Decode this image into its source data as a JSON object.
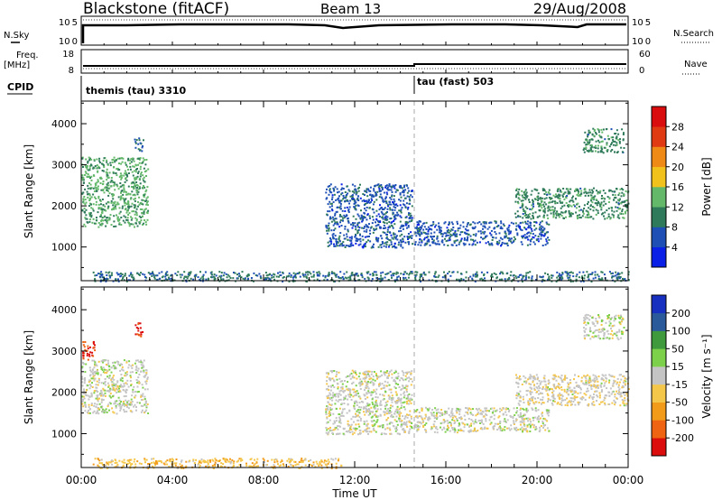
{
  "header": {
    "station": "Blackstone (fitACF)",
    "beam": "Beam 13",
    "date": "29/Aug/2008"
  },
  "time_axis": {
    "label": "Time UT",
    "range_hours": [
      0,
      24
    ],
    "ticks": [
      {
        "value": 0,
        "label": "00:00"
      },
      {
        "value": 4,
        "label": "04:00"
      },
      {
        "value": 8,
        "label": "08:00"
      },
      {
        "value": 12,
        "label": "12:00"
      },
      {
        "value": 16,
        "label": "16:00"
      },
      {
        "value": 20,
        "label": "20:00"
      },
      {
        "value": 24,
        "label": "00:00"
      }
    ]
  },
  "strip_labels": {
    "nsky": "N.Sky",
    "nsky_hi": "10^5",
    "nsky_lo": "10^0",
    "nsearch": "N.Search",
    "nsearch_hi": "10^5",
    "nsearch_lo": "10^0",
    "freq": "Freq.",
    "freq_unit": "[MHz]",
    "freq_hi": "18",
    "freq_lo": "8",
    "nave": "Nave",
    "nave_hi": "60",
    "nave_lo": "0",
    "cpid": "CPID"
  },
  "cpid_segments": [
    {
      "start_hour": 0,
      "label": "themis (tau) 3310"
    },
    {
      "start_hour": 14.55,
      "label": "tau (fast) 503"
    }
  ],
  "chart_data": [
    {
      "type": "heatmap",
      "name": "power",
      "ylabel": "Slant Range [km]",
      "ylim": [
        180,
        4550
      ],
      "yticks": [
        1000,
        2000,
        3000,
        4000
      ],
      "colorbar": {
        "label": "Power [dB]",
        "range": [
          0,
          30
        ],
        "ticks": [
          "4",
          "8",
          "12",
          "16",
          "20",
          "24",
          "28"
        ],
        "colors": [
          "#0a20e6",
          "#1d4fb5",
          "#2f7a5a",
          "#63b86a",
          "#f2c21c",
          "#f08a16",
          "#e03a12",
          "#d90d0d"
        ]
      },
      "echo_regions": [
        {
          "t0": 0.0,
          "t1": 2.9,
          "r0": 1500,
          "r1": 3200,
          "value": 12
        },
        {
          "t0": 2.3,
          "t1": 2.7,
          "r0": 3350,
          "r1": 3700,
          "value": 8
        },
        {
          "t0": 10.7,
          "t1": 14.5,
          "r0": 1000,
          "r1": 2550,
          "value": 6
        },
        {
          "t0": 14.6,
          "t1": 20.5,
          "r0": 1050,
          "r1": 1650,
          "value": 6
        },
        {
          "t0": 19.0,
          "t1": 24.0,
          "r0": 1700,
          "r1": 2450,
          "value": 10
        },
        {
          "t0": 22.0,
          "t1": 23.8,
          "r0": 3300,
          "r1": 3900,
          "value": 10
        },
        {
          "t0": 0.5,
          "t1": 24.0,
          "r0": 180,
          "r1": 420,
          "value": 8
        }
      ]
    },
    {
      "type": "heatmap",
      "name": "velocity",
      "ylabel": "Slant Range [km]",
      "ylim": [
        180,
        4550
      ],
      "yticks": [
        1000,
        2000,
        3000,
        4000
      ],
      "colorbar": {
        "label": "Velocity [m s⁻¹]",
        "range": [
          -250,
          250
        ],
        "ticks": [
          "-200",
          "-100",
          "-50",
          "-15",
          "15",
          "50",
          "100",
          "200"
        ],
        "colors": [
          "#dc0d0d",
          "#ee6412",
          "#f29a1a",
          "#f4c64a",
          "#c4c4c4",
          "#7cd04a",
          "#3e9a3c",
          "#2b5a9a",
          "#1830c0"
        ]
      },
      "echo_regions": [
        {
          "t0": 0.0,
          "t1": 0.6,
          "r0": 2800,
          "r1": 3250,
          "value": -200
        },
        {
          "t0": 0.0,
          "t1": 2.9,
          "r0": 1500,
          "r1": 2800,
          "value": 0
        },
        {
          "t0": 2.3,
          "t1": 2.7,
          "r0": 3350,
          "r1": 3700,
          "value": -200
        },
        {
          "t0": 10.7,
          "t1": 14.5,
          "r0": 1000,
          "r1": 2550,
          "value": 0
        },
        {
          "t0": 14.6,
          "t1": 20.5,
          "r0": 1050,
          "r1": 1650,
          "value": 0
        },
        {
          "t0": 19.0,
          "t1": 24.0,
          "r0": 1700,
          "r1": 2450,
          "value": -15
        },
        {
          "t0": 22.0,
          "t1": 23.8,
          "r0": 3300,
          "r1": 3900,
          "value": 0
        },
        {
          "t0": 0.5,
          "t1": 11.5,
          "r0": 180,
          "r1": 420,
          "value": -60
        }
      ]
    }
  ]
}
